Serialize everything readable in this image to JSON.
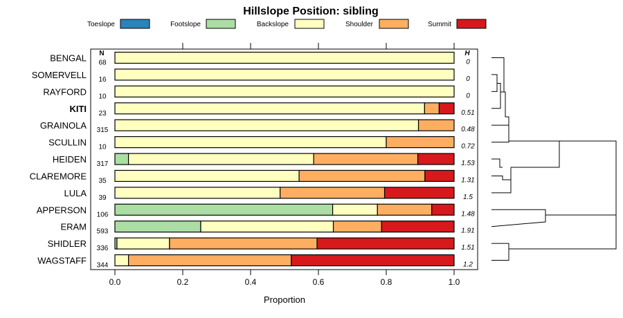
{
  "chart_data": {
    "type": "bar",
    "stacked": true,
    "orientation": "horizontal",
    "title": "Hillslope Position: sibling",
    "xlabel": "Proportion",
    "xlim": [
      0,
      1
    ],
    "xticks": [
      0.0,
      0.2,
      0.4,
      0.6,
      0.8,
      1.0
    ],
    "xtick_labels": [
      "0.0",
      "0.2",
      "0.4",
      "0.6",
      "0.8",
      "1.0"
    ],
    "n_header": "N",
    "h_header": "H",
    "legend_placement": "top",
    "series": [
      {
        "name": "Toeslope",
        "color": "#2B83BA"
      },
      {
        "name": "Footslope",
        "color": "#ABDDA4"
      },
      {
        "name": "Backslope",
        "color": "#FFFFBF"
      },
      {
        "name": "Shoulder",
        "color": "#FDAE61"
      },
      {
        "name": "Summit",
        "color": "#D7191C"
      }
    ],
    "categories": [
      "BENGAL",
      "SOMERVELL",
      "RAYFORD",
      "KITI",
      "GRAINOLA",
      "SCULLIN",
      "HEIDEN",
      "CLAREMORE",
      "LULA",
      "APPERSON",
      "ERAM",
      "SHIDLER",
      "WAGSTAFF"
    ],
    "highlight": "KITI",
    "rows": [
      {
        "name": "BENGAL",
        "n": "68",
        "h": "0",
        "values": [
          0,
          0,
          1.0,
          0,
          0
        ]
      },
      {
        "name": "SOMERVELL",
        "n": "16",
        "h": "0",
        "values": [
          0,
          0,
          1.0,
          0,
          0
        ]
      },
      {
        "name": "RAYFORD",
        "n": "10",
        "h": "0",
        "values": [
          0,
          0,
          1.0,
          0,
          0
        ]
      },
      {
        "name": "KITI",
        "n": "23",
        "h": "0.51",
        "values": [
          0,
          0,
          0.913,
          0.043,
          0.044
        ]
      },
      {
        "name": "GRAINOLA",
        "n": "315",
        "h": "0.48",
        "values": [
          0,
          0,
          0.895,
          0.105,
          0
        ]
      },
      {
        "name": "SCULLIN",
        "n": "10",
        "h": "0.72",
        "values": [
          0,
          0,
          0.8,
          0.2,
          0
        ]
      },
      {
        "name": "HEIDEN",
        "n": "317",
        "h": "1.53",
        "values": [
          0,
          0.04,
          0.546,
          0.307,
          0.107
        ]
      },
      {
        "name": "CLAREMORE",
        "n": "35",
        "h": "1.31",
        "values": [
          0,
          0,
          0.543,
          0.371,
          0.086
        ]
      },
      {
        "name": "LULA",
        "n": "39",
        "h": "1.5",
        "values": [
          0,
          0,
          0.487,
          0.308,
          0.205
        ]
      },
      {
        "name": "APPERSON",
        "n": "106",
        "h": "1.48",
        "values": [
          0,
          0.642,
          0.132,
          0.16,
          0.066
        ]
      },
      {
        "name": "ERAM",
        "n": "593",
        "h": "1.91",
        "values": [
          0,
          0.253,
          0.391,
          0.142,
          0.214
        ]
      },
      {
        "name": "SHIDLER",
        "n": "336",
        "h": "1.51",
        "values": [
          0,
          0.006,
          0.155,
          0.435,
          0.404
        ]
      },
      {
        "name": "WAGSTAFF",
        "n": "344",
        "h": "1.2",
        "values": [
          0,
          0,
          0.04,
          0.48,
          0.48
        ]
      }
    ]
  }
}
